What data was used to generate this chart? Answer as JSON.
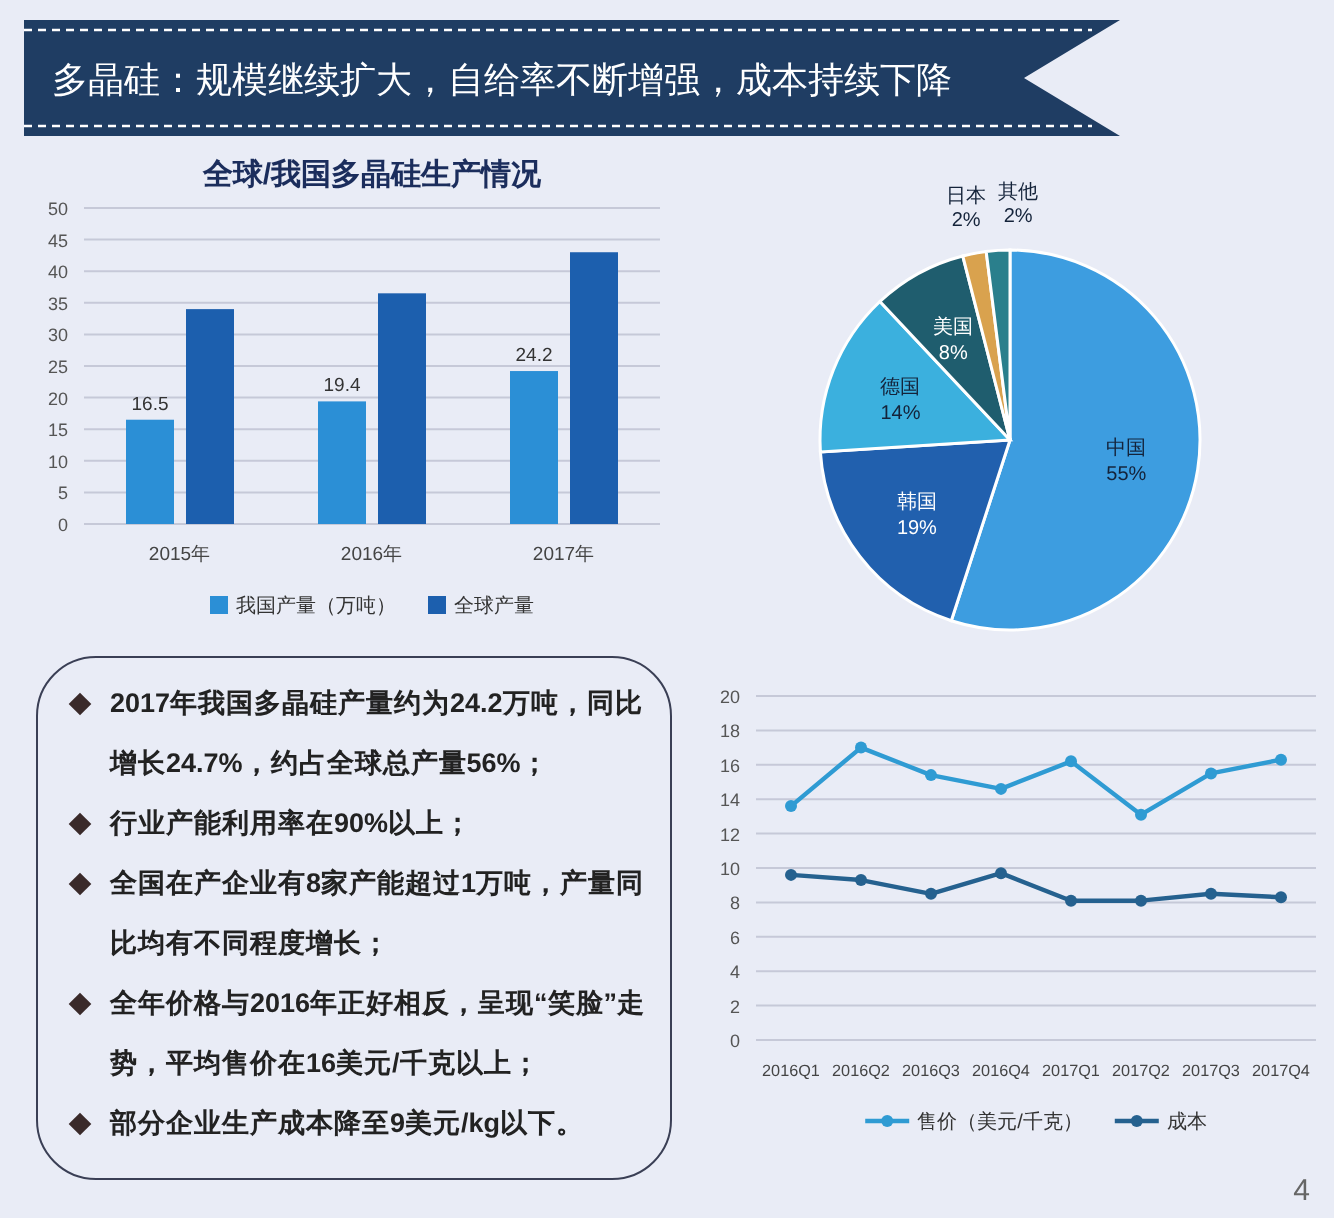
{
  "chart_data": [
    {
      "type": "other",
      "title": "多晶硅：规模继续扩大，自给率不断增强，成本持续下降",
      "annotations": [
        "4"
      ]
    },
    {
      "type": "bar",
      "title": "全球/我国多晶硅生产情况",
      "categories": [
        "2015年",
        "2016年",
        "2017年"
      ],
      "series": [
        {
          "name": "我国产量（万吨）",
          "color": "#2b8fd6",
          "values": [
            16.5,
            19.4,
            24.2
          ],
          "value_labels": [
            "16.5",
            "19.4",
            "24.2"
          ]
        },
        {
          "name": "全球产量",
          "color": "#1c5fae",
          "values": [
            34,
            36.5,
            43
          ]
        }
      ],
      "ylim": [
        0,
        50
      ],
      "yticks": [
        0,
        5,
        10,
        15,
        20,
        25,
        30,
        35,
        40,
        45,
        50
      ],
      "grid": "y",
      "legend": "bottom"
    },
    {
      "type": "pie",
      "categories": [
        "中国",
        "韩国",
        "德国",
        "美国",
        "日本",
        "其他"
      ],
      "values": [
        55,
        19,
        14,
        8,
        2,
        2
      ],
      "value_labels": [
        "55%",
        "19%",
        "14%",
        "8%",
        "2%",
        "2%"
      ],
      "colors": [
        "#3d9de0",
        "#2160ae",
        "#3bb0de",
        "#1f5d6e",
        "#d9a24e",
        "#2a7f8c"
      ]
    },
    {
      "type": "other",
      "annotations": [
        "2017年我国多晶硅产量约为24.2万吨，同比增长24.7%，约占全球总产量56%；",
        "行业产能利用率在90%以上；",
        "全国在产企业有8家产能超过1万吨，产量同比均有不同程度增长；",
        "全年价格与2016年正好相反，呈现“笑脸”走势，平均售价在16美元/千克以上；",
        "部分企业生产成本降至9美元/kg以下。"
      ]
    },
    {
      "type": "line",
      "categories": [
        "2016Q1",
        "2016Q2",
        "2016Q3",
        "2016Q4",
        "2017Q1",
        "2017Q2",
        "2017Q3",
        "2017Q4"
      ],
      "series": [
        {
          "name": "售价（美元/千克）",
          "color": "#2f9bd3",
          "values": [
            13.6,
            17.0,
            15.4,
            14.6,
            16.2,
            13.1,
            15.5,
            16.3
          ]
        },
        {
          "name": "成本",
          "color": "#25618f",
          "values": [
            9.6,
            9.3,
            8.5,
            9.7,
            8.1,
            8.1,
            8.5,
            8.3
          ]
        }
      ],
      "ylim": [
        0,
        20
      ],
      "yticks": [
        0,
        2,
        4,
        6,
        8,
        10,
        12,
        14,
        16,
        18,
        20
      ],
      "grid": "y",
      "legend": "bottom",
      "marker": "circle"
    }
  ]
}
